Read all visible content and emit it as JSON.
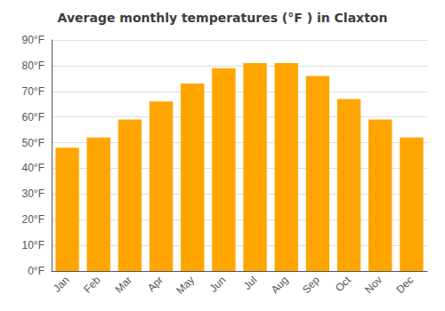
{
  "chart_data": {
    "type": "bar",
    "title": "Average monthly temperatures (°F ) in Claxton",
    "categories": [
      "Jan",
      "Feb",
      "Mar",
      "Apr",
      "May",
      "Jun",
      "Jul",
      "Aug",
      "Sep",
      "Oct",
      "Nov",
      "Dec"
    ],
    "values": [
      48,
      52,
      59,
      66,
      73,
      79,
      81,
      81,
      76,
      67,
      59,
      52
    ],
    "color": "#FFA500",
    "ylim": [
      0,
      90
    ],
    "yticks": [
      {
        "value": 0,
        "label": "0°F"
      },
      {
        "value": 10,
        "label": "10°F"
      },
      {
        "value": 20,
        "label": "20°F"
      },
      {
        "value": 30,
        "label": "30°F"
      },
      {
        "value": 40,
        "label": "40°F"
      },
      {
        "value": 50,
        "label": "50°F"
      },
      {
        "value": 60,
        "label": "60°F"
      },
      {
        "value": 70,
        "label": "70°F"
      },
      {
        "value": 80,
        "label": "80°F"
      },
      {
        "value": 90,
        "label": "90°F"
      }
    ],
    "grid": true
  }
}
